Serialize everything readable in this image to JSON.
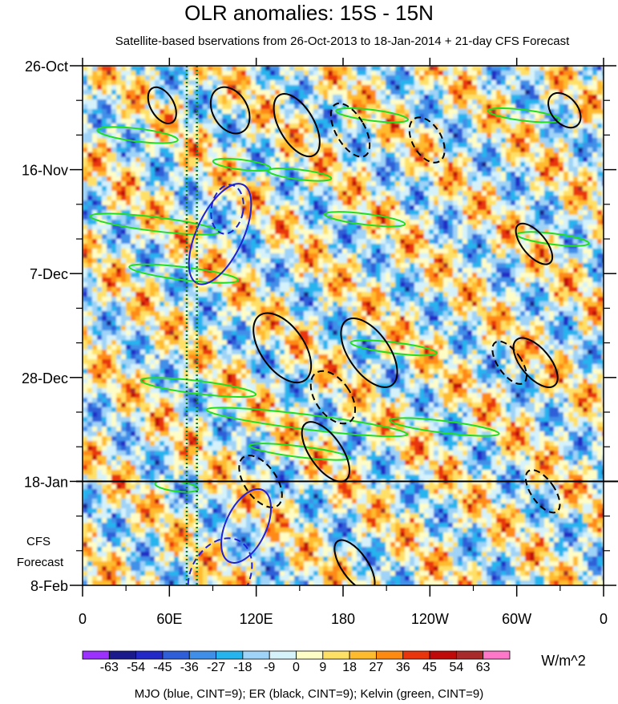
{
  "chart_data": {
    "type": "heatmap",
    "title": "OLR anomalies: 15S - 15N",
    "subtitle": "Satellite-based bservations from 26-Oct-2013 to 18-Jan-2014 + 21-day CFS Forecast",
    "x_ticks": [
      {
        "label": "0",
        "lon": 0
      },
      {
        "label": "60E",
        "lon": 60
      },
      {
        "label": "120E",
        "lon": 120
      },
      {
        "label": "180",
        "lon": 180
      },
      {
        "label": "120W",
        "lon": 240
      },
      {
        "label": "60W",
        "lon": 300
      },
      {
        "label": "0",
        "lon": 360
      }
    ],
    "xlim": [
      0,
      360
    ],
    "y_ticks": [
      {
        "label": "26-Oct",
        "day": 0
      },
      {
        "label": "16-Nov",
        "day": 21
      },
      {
        "label": "7-Dec",
        "day": 42
      },
      {
        "label": "28-Dec",
        "day": 63
      },
      {
        "label": "18-Jan",
        "day": 84
      },
      {
        "label": "8-Feb",
        "day": 105
      }
    ],
    "ylim_days": [
      0,
      105
    ],
    "observation_end_day": 84,
    "forecast_label_line1": "CFS",
    "forecast_label_line2": "Forecast",
    "reference_lons": [
      72,
      79
    ],
    "colorbar": {
      "levels": [
        "-63",
        "-54",
        "-45",
        "-36",
        "-27",
        "-18",
        "-9",
        "0",
        "9",
        "18",
        "27",
        "36",
        "45",
        "54",
        "63"
      ],
      "colors": [
        "#9b30ff",
        "#1b1a8c",
        "#2229c6",
        "#2f5fd8",
        "#3f8fe8",
        "#26b4ee",
        "#9fd3f7",
        "#d5f2fb",
        "#fffdc6",
        "#ffe066",
        "#ffbb2e",
        "#ff8a12",
        "#e8350b",
        "#c00a0a",
        "#a82a2a",
        "#ff77c9"
      ],
      "units": "W/m^2"
    },
    "footer": "MJO (blue, CINT=9); ER (black, CINT=9); Kelvin (green, CINT=9)",
    "contour_colors": {
      "mjo": "#1f22d6",
      "er": "#000000",
      "kelvin": "#22dd22"
    },
    "reference_color": "#0a7a2a",
    "mjo_contours": [
      {
        "lon": 95,
        "day": 34,
        "rlon": 16,
        "rday": 11,
        "tilt": 25,
        "dashed": false
      },
      {
        "lon": 113,
        "day": 93,
        "rlon": 14,
        "rday": 8,
        "tilt": 25,
        "dashed": false
      },
      {
        "lon": 100,
        "day": 29,
        "rlon": 11,
        "rday": 5,
        "tilt": 10,
        "dashed": true
      },
      {
        "lon": 95,
        "day": 103,
        "rlon": 20,
        "rday": 8,
        "tilt": 30,
        "dashed": true
      }
    ],
    "er_contours": [
      {
        "lon": 55,
        "day": 8,
        "rlon": 8,
        "rday": 4,
        "tilt": -30,
        "dashed": false
      },
      {
        "lon": 102,
        "day": 9,
        "rlon": 12,
        "rday": 5,
        "tilt": -30,
        "dashed": false
      },
      {
        "lon": 148,
        "day": 12,
        "rlon": 12,
        "rday": 7,
        "tilt": -30,
        "dashed": false
      },
      {
        "lon": 138,
        "day": 57,
        "rlon": 15,
        "rday": 8,
        "tilt": -35,
        "dashed": false
      },
      {
        "lon": 198,
        "day": 58,
        "rlon": 14,
        "rday": 8,
        "tilt": -35,
        "dashed": false
      },
      {
        "lon": 168,
        "day": 78,
        "rlon": 11,
        "rday": 7,
        "tilt": -35,
        "dashed": false
      },
      {
        "lon": 188,
        "day": 101,
        "rlon": 9,
        "rday": 6,
        "tilt": -35,
        "dashed": false
      },
      {
        "lon": 313,
        "day": 60,
        "rlon": 10,
        "rday": 6,
        "tilt": -40,
        "dashed": false
      },
      {
        "lon": 333,
        "day": 9,
        "rlon": 9,
        "rday": 4,
        "tilt": -40,
        "dashed": false
      },
      {
        "lon": 312,
        "day": 36,
        "rlon": 8,
        "rday": 5,
        "tilt": -40,
        "dashed": false
      },
      {
        "lon": 123,
        "day": 84,
        "rlon": 11,
        "rday": 6,
        "tilt": -35,
        "dashed": true
      },
      {
        "lon": 185,
        "day": 13,
        "rlon": 10,
        "rday": 6,
        "tilt": -30,
        "dashed": true
      },
      {
        "lon": 238,
        "day": 15,
        "rlon": 10,
        "rday": 5,
        "tilt": -30,
        "dashed": true
      },
      {
        "lon": 173,
        "day": 67,
        "rlon": 12,
        "rday": 6,
        "tilt": -35,
        "dashed": true
      },
      {
        "lon": 295,
        "day": 60,
        "rlon": 8,
        "rday": 5,
        "tilt": -35,
        "dashed": true
      },
      {
        "lon": 318,
        "day": 86,
        "rlon": 8,
        "rday": 5,
        "tilt": -35,
        "dashed": true
      }
    ],
    "kelvin_contours": [
      {
        "lon": 38,
        "day": 14,
        "rlon": 28,
        "rday": 1.3,
        "tilt": 7,
        "dashed": false
      },
      {
        "lon": 50,
        "day": 32,
        "rlon": 45,
        "rday": 1.4,
        "tilt": 7,
        "dashed": false
      },
      {
        "lon": 70,
        "day": 42,
        "rlon": 38,
        "rday": 1.3,
        "tilt": 7,
        "dashed": false
      },
      {
        "lon": 110,
        "day": 20,
        "rlon": 20,
        "rday": 1.0,
        "tilt": 7,
        "dashed": false
      },
      {
        "lon": 150,
        "day": 22,
        "rlon": 22,
        "rday": 1.0,
        "tilt": 7,
        "dashed": false
      },
      {
        "lon": 200,
        "day": 10,
        "rlon": 25,
        "rday": 1.1,
        "tilt": 7,
        "dashed": false
      },
      {
        "lon": 215,
        "day": 57,
        "rlon": 30,
        "rday": 1.1,
        "tilt": 7,
        "dashed": false
      },
      {
        "lon": 155,
        "day": 72,
        "rlon": 70,
        "rday": 1.5,
        "tilt": 7,
        "dashed": false
      },
      {
        "lon": 80,
        "day": 65,
        "rlon": 40,
        "rday": 1.3,
        "tilt": 7,
        "dashed": false
      },
      {
        "lon": 195,
        "day": 31,
        "rlon": 28,
        "rday": 1.1,
        "tilt": 7,
        "dashed": false
      },
      {
        "lon": 250,
        "day": 73,
        "rlon": 38,
        "rday": 1.2,
        "tilt": 7,
        "dashed": false
      },
      {
        "lon": 325,
        "day": 35,
        "rlon": 25,
        "rday": 1.1,
        "tilt": 7,
        "dashed": false
      },
      {
        "lon": 305,
        "day": 10,
        "rlon": 25,
        "rday": 1.1,
        "tilt": 7,
        "dashed": false
      },
      {
        "lon": 150,
        "day": 78,
        "rlon": 35,
        "rday": 1.1,
        "tilt": 7,
        "dashed": false
      },
      {
        "lon": 65,
        "day": 85,
        "rlon": 15,
        "rday": 1.0,
        "tilt": 7,
        "dashed": false
      }
    ]
  }
}
